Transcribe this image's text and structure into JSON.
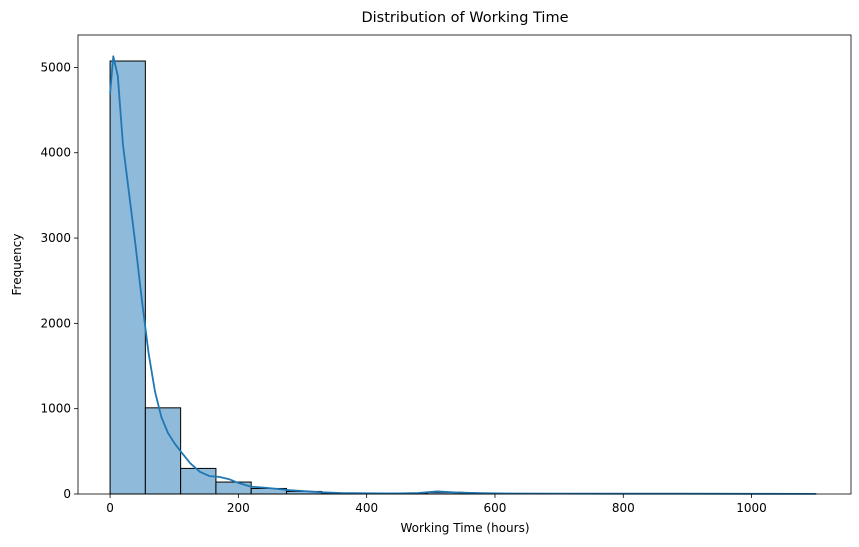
{
  "chart_data": {
    "type": "bar",
    "title": "Distribution of Working Time",
    "xlabel": "Working Time (hours)",
    "ylabel": "Frequency",
    "bin_edges": [
      0,
      55,
      110,
      165,
      220,
      275,
      330,
      385,
      440,
      495,
      550,
      605,
      660,
      715,
      770,
      825,
      880,
      935,
      990,
      1045,
      1100
    ],
    "values": [
      5075,
      1010,
      300,
      140,
      65,
      30,
      10,
      6,
      5,
      20,
      4,
      3,
      2,
      2,
      1,
      1,
      1,
      1,
      1,
      1
    ],
    "kde": {
      "x": [
        0,
        5,
        12,
        20,
        30,
        40,
        50,
        60,
        70,
        80,
        90,
        100,
        110,
        125,
        140,
        155,
        170,
        185,
        200,
        220,
        240,
        260,
        280,
        300,
        330,
        360,
        400,
        450,
        480,
        510,
        540,
        580,
        620,
        700,
        800,
        900,
        1000,
        1100
      ],
      "y": [
        4700,
        5130,
        4900,
        4100,
        3500,
        2900,
        2250,
        1650,
        1200,
        900,
        720,
        600,
        500,
        360,
        260,
        210,
        200,
        175,
        130,
        85,
        75,
        60,
        45,
        35,
        20,
        12,
        8,
        7,
        12,
        30,
        18,
        10,
        6,
        5,
        4,
        3,
        2,
        1
      ]
    },
    "xlim": [
      -50,
      1155
    ],
    "ylim": [
      0,
      5380
    ],
    "xticks": [
      0,
      200,
      400,
      600,
      800,
      1000
    ],
    "yticks": [
      0,
      1000,
      2000,
      3000,
      4000,
      5000
    ],
    "grid": false,
    "colors": {
      "bar_fill": "#8fbad9",
      "bar_edge": "#000000",
      "kde_line": "#1f77b4"
    }
  }
}
